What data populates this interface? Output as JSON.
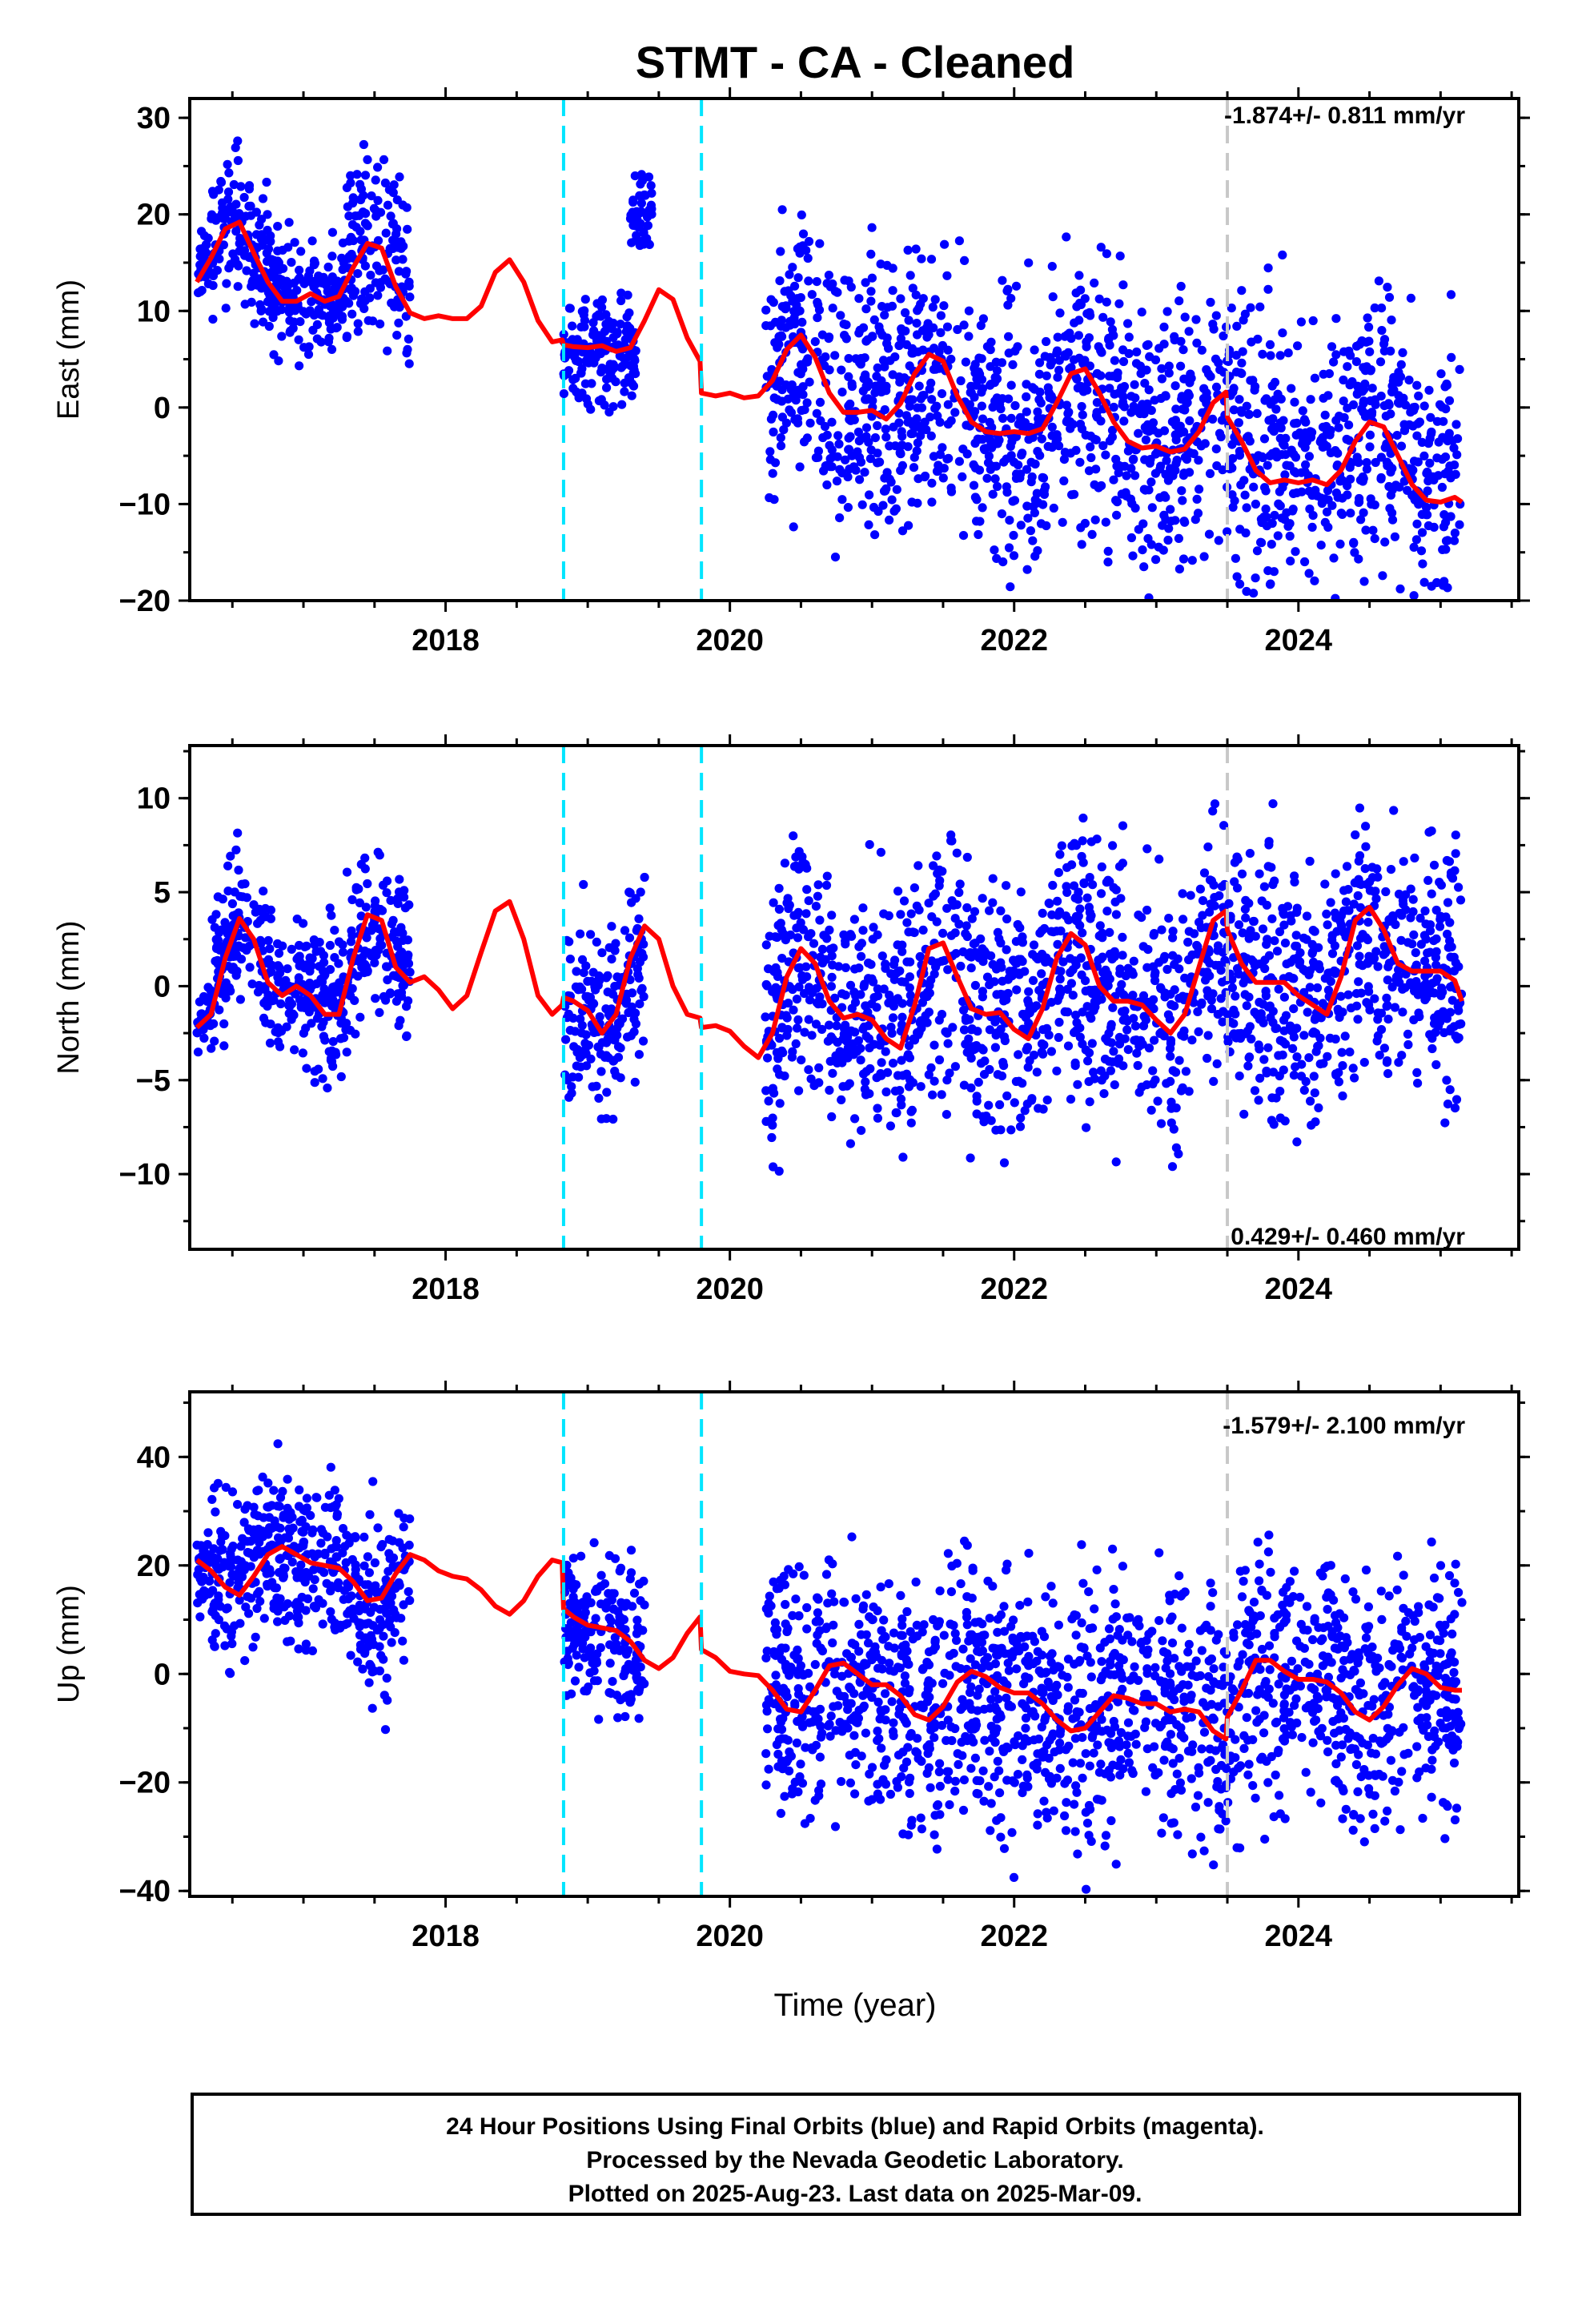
{
  "title": "STMT  - CA - Cleaned",
  "xlabel": "Time (year)",
  "colors": {
    "points": "#0000ff",
    "model": "#ff0000",
    "event_dash": "#00e5ff",
    "gray_dash": "#c8c8c8",
    "frame": "#000000"
  },
  "footer": {
    "line1": "24 Hour Positions Using Final Orbits (blue) and Rapid Orbits (magenta).",
    "line2": "Processed by the Nevada Geodetic Laboratory.",
    "line3": "Plotted on 2025-Aug-23. Last data on 2025-Mar-09."
  },
  "chart_data": [
    {
      "type": "scatter",
      "component": "east",
      "ylabel": "East (mm)",
      "rate_text": "-1.874+/- 0.811 mm/yr",
      "rate_position": "top-right",
      "xlim": [
        2016.2,
        2025.55
      ],
      "ylim": [
        -20,
        32
      ],
      "xticks": [
        2018,
        2020,
        2022,
        2024
      ],
      "xtick_labels": [
        "2018",
        "2020",
        "2022",
        "2024"
      ],
      "yticks": [
        -20,
        -10,
        0,
        10,
        20,
        30
      ],
      "ytick_labels": [
        "−20",
        "−10",
        "0",
        "10",
        "20",
        "30"
      ],
      "event_lines": [
        2018.83,
        2019.8
      ],
      "gray_lines": [
        2023.5
      ],
      "model_curve": {
        "x": [
          2016.25,
          2016.35,
          2016.45,
          2016.55,
          2016.65,
          2016.75,
          2016.85,
          2016.95,
          2017.05,
          2017.15,
          2017.25,
          2017.35,
          2017.45,
          2017.55,
          2017.65,
          2017.75,
          2017.85,
          2017.95,
          2018.05,
          2018.15,
          2018.25,
          2018.35,
          2018.45,
          2018.55,
          2018.65,
          2018.75,
          2018.82,
          2018.83,
          2018.9,
          2019.0,
          2019.1,
          2019.2,
          2019.3,
          2019.4,
          2019.5,
          2019.6,
          2019.7,
          2019.79,
          2019.8,
          2019.9,
          2020.0,
          2020.1,
          2020.2,
          2020.3,
          2020.4,
          2020.5,
          2020.6,
          2020.7,
          2020.8,
          2020.9,
          2021.0,
          2021.1,
          2021.2,
          2021.3,
          2021.4,
          2021.5,
          2021.6,
          2021.7,
          2021.8,
          2021.9,
          2022.0,
          2022.1,
          2022.2,
          2022.3,
          2022.4,
          2022.5,
          2022.6,
          2022.7,
          2022.8,
          2022.9,
          2023.0,
          2023.1,
          2023.2,
          2023.3,
          2023.4,
          2023.49,
          2023.5,
          2023.6,
          2023.7,
          2023.8,
          2023.9,
          2024.0,
          2024.1,
          2024.2,
          2024.3,
          2024.4,
          2024.5,
          2024.6,
          2024.7,
          2024.8,
          2024.9,
          2025.0,
          2025.1,
          2025.15
        ],
        "y": [
          13,
          15.5,
          18.5,
          19.2,
          16,
          13,
          11,
          11,
          11.8,
          11,
          11.5,
          14.5,
          17,
          16.5,
          12.5,
          9.8,
          9.2,
          9.5,
          9.2,
          9.2,
          10.5,
          14,
          15.3,
          13,
          9,
          6.8,
          7,
          6.5,
          6.3,
          6.2,
          6.4,
          5.8,
          6.2,
          9,
          12.2,
          11.2,
          7.2,
          4.8,
          1.5,
          1.2,
          1.5,
          1,
          1.2,
          2.8,
          6,
          7.5,
          5.2,
          1.5,
          -0.5,
          -0.5,
          -0.3,
          -1.2,
          0.4,
          3.5,
          5.5,
          4.8,
          1.2,
          -1.5,
          -2.5,
          -2.7,
          -2.5,
          -2.7,
          -2.2,
          0.5,
          3.5,
          4,
          1.5,
          -1.5,
          -3.5,
          -4.2,
          -4,
          -4.6,
          -4.3,
          -2.5,
          0.5,
          1.6,
          -1,
          -3.5,
          -6.5,
          -7.8,
          -7.5,
          -7.8,
          -7.5,
          -8,
          -6.5,
          -3.5,
          -1.5,
          -2,
          -5,
          -8,
          -9.6,
          -9.8,
          -9.3,
          -9.8
        ]
      },
      "point_clusters": [
        {
          "x": [
            2016.25,
            2016.35
          ],
          "y_range": [
            13,
            20
          ]
        },
        {
          "x": [
            2016.35,
            2016.75
          ],
          "y_range": [
            11,
            27
          ]
        },
        {
          "x": [
            2016.75,
            2017.3
          ],
          "y_range": [
            6,
            18
          ]
        },
        {
          "x": [
            2017.3,
            2017.75
          ],
          "y_range": [
            6,
            28
          ]
        },
        {
          "x": [
            2018.83,
            2019.35
          ],
          "y_range": [
            -3,
            10
          ]
        },
        {
          "x": [
            2019.3,
            2019.45
          ],
          "y_range": [
            16,
            24
          ]
        },
        {
          "x": [
            2020.25,
            2025.15
          ],
          "y_range": [
            -14,
            16
          ]
        }
      ]
    },
    {
      "type": "scatter",
      "component": "north",
      "ylabel": "North (mm)",
      "rate_text": "0.429+/- 0.460 mm/yr",
      "rate_position": "bottom-right",
      "xlim": [
        2016.2,
        2025.55
      ],
      "ylim": [
        -14,
        12.8
      ],
      "xticks": [
        2018,
        2020,
        2022,
        2024
      ],
      "xtick_labels": [
        "2018",
        "2020",
        "2022",
        "2024"
      ],
      "yticks": [
        -10,
        -5,
        0,
        5,
        10
      ],
      "ytick_labels": [
        "−10",
        "−5",
        "0",
        "5",
        "10"
      ],
      "event_lines": [
        2018.83,
        2019.8
      ],
      "gray_lines": [
        2023.5
      ],
      "model_curve": {
        "x": [
          2016.25,
          2016.35,
          2016.45,
          2016.55,
          2016.65,
          2016.75,
          2016.85,
          2016.95,
          2017.05,
          2017.15,
          2017.25,
          2017.35,
          2017.45,
          2017.55,
          2017.65,
          2017.75,
          2017.85,
          2017.95,
          2018.05,
          2018.15,
          2018.25,
          2018.35,
          2018.45,
          2018.55,
          2018.65,
          2018.75,
          2018.82,
          2018.83,
          2018.9,
          2019.0,
          2019.1,
          2019.2,
          2019.3,
          2019.4,
          2019.5,
          2019.6,
          2019.7,
          2019.79,
          2019.8,
          2019.9,
          2020.0,
          2020.1,
          2020.2,
          2020.3,
          2020.4,
          2020.5,
          2020.6,
          2020.7,
          2020.8,
          2020.9,
          2021.0,
          2021.1,
          2021.2,
          2021.3,
          2021.4,
          2021.5,
          2021.6,
          2021.7,
          2021.8,
          2021.9,
          2022.0,
          2022.1,
          2022.2,
          2022.3,
          2022.4,
          2022.5,
          2022.6,
          2022.7,
          2022.8,
          2022.9,
          2023.0,
          2023.1,
          2023.2,
          2023.3,
          2023.4,
          2023.49,
          2023.5,
          2023.6,
          2023.7,
          2023.8,
          2023.9,
          2024.0,
          2024.1,
          2024.2,
          2024.3,
          2024.4,
          2024.5,
          2024.6,
          2024.7,
          2024.8,
          2024.9,
          2025.0,
          2025.1,
          2025.15
        ],
        "y": [
          -2.2,
          -1.5,
          1.5,
          3.6,
          2.5,
          0.2,
          -0.5,
          0,
          -0.5,
          -1.5,
          -1.5,
          1.5,
          3.8,
          3.5,
          1,
          0.2,
          0.5,
          -0.2,
          -1.2,
          -0.5,
          1.8,
          4,
          4.5,
          2.5,
          -0.5,
          -1.5,
          -1,
          -0.6,
          -0.8,
          -1.3,
          -2.5,
          -1.5,
          1.5,
          3.2,
          2.5,
          0,
          -1.5,
          -1.7,
          -2.2,
          -2.1,
          -2.4,
          -3.2,
          -3.8,
          -2.5,
          0.5,
          2,
          1.2,
          -0.8,
          -1.7,
          -1.5,
          -1.8,
          -2.8,
          -3.3,
          -1,
          2,
          2.3,
          0.5,
          -1.2,
          -1.5,
          -1.4,
          -2.3,
          -2.8,
          -1.2,
          1.5,
          2.8,
          2.2,
          0,
          -0.8,
          -0.8,
          -1,
          -1.8,
          -2.5,
          -1.5,
          1,
          3.5,
          4,
          3,
          1.2,
          0.2,
          0.2,
          0.2,
          -0.5,
          -1,
          -1.5,
          0.5,
          3.5,
          4.2,
          3,
          1.2,
          0.8,
          0.8,
          0.8,
          0.3,
          -0.8
        ]
      },
      "point_clusters": [
        {
          "x": [
            2016.25,
            2016.35
          ],
          "y_range": [
            -3,
            0
          ]
        },
        {
          "x": [
            2016.35,
            2016.75
          ],
          "y_range": [
            -2,
            7
          ]
        },
        {
          "x": [
            2016.75,
            2017.3
          ],
          "y_range": [
            -4,
            4
          ]
        },
        {
          "x": [
            2017.3,
            2017.75
          ],
          "y_range": [
            -2,
            7
          ]
        },
        {
          "x": [
            2018.83,
            2019.4
          ],
          "y_range": [
            -7,
            4
          ]
        },
        {
          "x": [
            2020.25,
            2025.15
          ],
          "y_range": [
            -7,
            8
          ]
        }
      ]
    },
    {
      "type": "scatter",
      "component": "up",
      "ylabel": "Up (mm)",
      "rate_text": "-1.579+/- 2.100 mm/yr",
      "rate_position": "top-right",
      "xlim": [
        2016.2,
        2025.55
      ],
      "ylim": [
        -41,
        52
      ],
      "xticks": [
        2018,
        2020,
        2022,
        2024
      ],
      "xtick_labels": [
        "2018",
        "2020",
        "2022",
        "2024"
      ],
      "yticks": [
        -40,
        -20,
        0,
        20,
        40
      ],
      "ytick_labels": [
        "−40",
        "−20",
        "0",
        "20",
        "40"
      ],
      "event_lines": [
        2018.83,
        2019.8
      ],
      "gray_lines": [
        2023.5
      ],
      "model_curve": {
        "x": [
          2016.25,
          2016.35,
          2016.45,
          2016.55,
          2016.65,
          2016.75,
          2016.85,
          2016.95,
          2017.05,
          2017.15,
          2017.25,
          2017.35,
          2017.45,
          2017.55,
          2017.65,
          2017.75,
          2017.85,
          2017.95,
          2018.05,
          2018.15,
          2018.25,
          2018.35,
          2018.45,
          2018.55,
          2018.65,
          2018.75,
          2018.82,
          2018.83,
          2018.9,
          2019.0,
          2019.1,
          2019.2,
          2019.3,
          2019.4,
          2019.5,
          2019.6,
          2019.7,
          2019.79,
          2019.8,
          2019.9,
          2020.0,
          2020.1,
          2020.2,
          2020.3,
          2020.4,
          2020.5,
          2020.6,
          2020.7,
          2020.8,
          2020.9,
          2021.0,
          2021.1,
          2021.2,
          2021.3,
          2021.4,
          2021.5,
          2021.6,
          2021.7,
          2021.8,
          2021.9,
          2022.0,
          2022.1,
          2022.2,
          2022.3,
          2022.4,
          2022.5,
          2022.6,
          2022.7,
          2022.8,
          2022.9,
          2023.0,
          2023.1,
          2023.2,
          2023.3,
          2023.4,
          2023.49,
          2023.5,
          2023.6,
          2023.7,
          2023.8,
          2023.9,
          2024.0,
          2024.1,
          2024.2,
          2024.3,
          2024.4,
          2024.5,
          2024.6,
          2024.7,
          2024.8,
          2024.9,
          2025.0,
          2025.1,
          2025.15
        ],
        "y": [
          21,
          19,
          16,
          14.5,
          18,
          22,
          23.5,
          22,
          20.5,
          20,
          19.5,
          17,
          13.5,
          14,
          18.5,
          22,
          21,
          19,
          18,
          17.5,
          15.5,
          12.5,
          11,
          13.5,
          18,
          21,
          20.5,
          12,
          10.5,
          9,
          8.5,
          8,
          6,
          2.5,
          1,
          3,
          7.5,
          10.5,
          4.5,
          3,
          0.5,
          0,
          -0.3,
          -3,
          -6.5,
          -7,
          -3,
          1.5,
          2,
          0,
          -2,
          -2,
          -4,
          -7.5,
          -8.5,
          -6,
          -1.5,
          0.5,
          -0.5,
          -2.5,
          -3.5,
          -3.5,
          -5.5,
          -8.5,
          -10.5,
          -10,
          -7,
          -4,
          -4.5,
          -5.5,
          -5.5,
          -7,
          -6.5,
          -7,
          -10.5,
          -12,
          -8,
          -3,
          2.5,
          2.5,
          0.5,
          -1,
          -1,
          -1.5,
          -3.5,
          -7,
          -8.5,
          -6,
          -2,
          1,
          0,
          -2.5,
          -3,
          -3
        ]
      },
      "point_clusters": [
        {
          "x": [
            2016.25,
            2016.35
          ],
          "y_range": [
            5,
            25
          ]
        },
        {
          "x": [
            2016.35,
            2016.75
          ],
          "y_range": [
            5,
            38
          ]
        },
        {
          "x": [
            2016.75,
            2017.3
          ],
          "y_range": [
            5,
            38
          ]
        },
        {
          "x": [
            2017.3,
            2017.75
          ],
          "y_range": [
            -10,
            28
          ]
        },
        {
          "x": [
            2018.83,
            2019.4
          ],
          "y_range": [
            -8,
            24
          ]
        },
        {
          "x": [
            2020.25,
            2025.15
          ],
          "y_range": [
            -30,
            22
          ]
        }
      ]
    }
  ]
}
